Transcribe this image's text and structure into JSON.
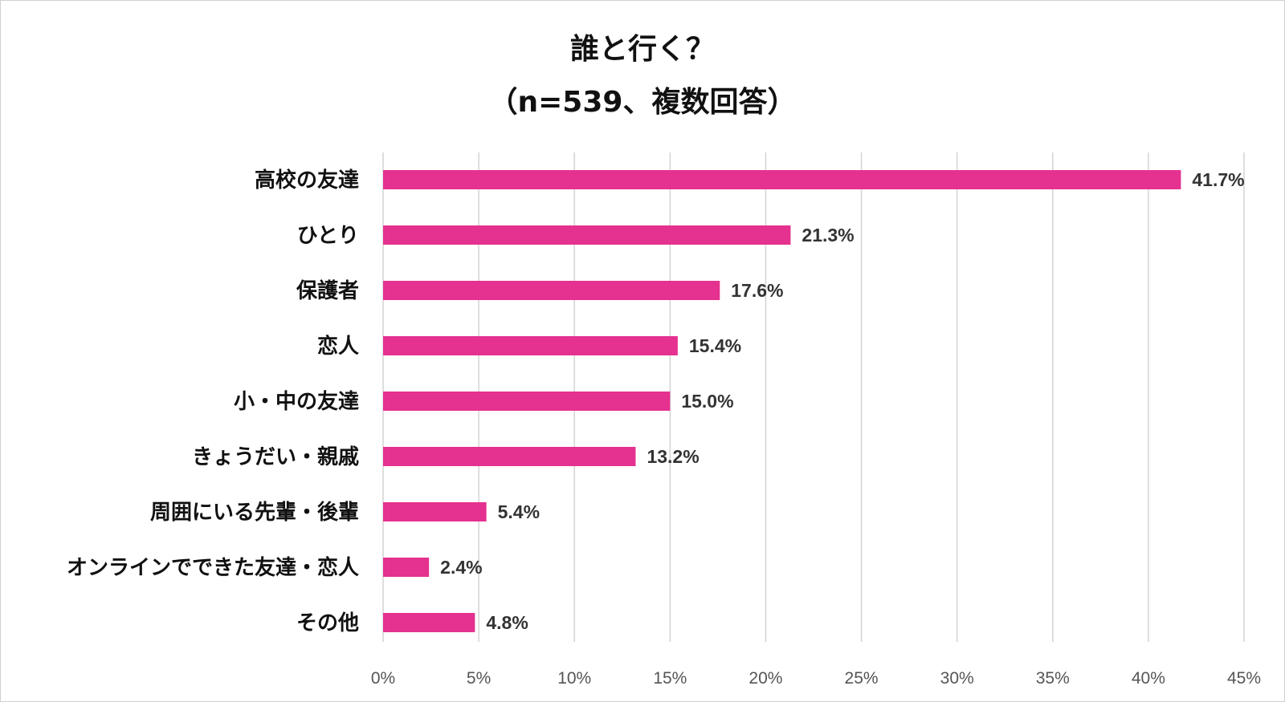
{
  "chart_data": {
    "type": "bar",
    "orientation": "horizontal",
    "title": "誰と行く？",
    "subtitle": "（n=539、複数回答）",
    "categories": [
      "高校の友達",
      "ひとり",
      "保護者",
      "恋人",
      "小・中の友達",
      "きょうだい・親戚",
      "周囲にいる先輩・後輩",
      "オンラインでできた友達・恋人",
      "その他"
    ],
    "values": [
      41.7,
      21.3,
      17.6,
      15.4,
      15.0,
      13.2,
      5.4,
      2.4,
      4.8
    ],
    "value_labels": [
      "41.7%",
      "21.3%",
      "17.6%",
      "15.4%",
      "15.0%",
      "13.2%",
      "5.4%",
      "2.4%",
      "4.8%"
    ],
    "xlim": [
      0,
      45
    ],
    "x_ticks": [
      "0%",
      "5%",
      "10%",
      "15%",
      "20%",
      "25%",
      "30%",
      "35%",
      "40%",
      "45%"
    ],
    "grid": "vertical",
    "legend": "none",
    "bar_color": "#e5318f"
  }
}
